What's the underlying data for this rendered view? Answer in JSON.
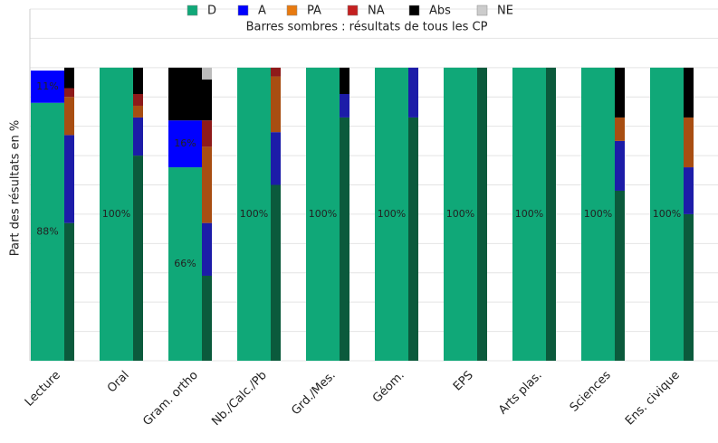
{
  "chart_data": {
    "type": "stacked-bar",
    "subtitle": "Barres sombres : résultats de tous les CP",
    "ylabel": "Part des résultats en %",
    "categories": [
      "Lecture",
      "Oral",
      "Gram. ortho",
      "Nb./Calc./Pb",
      "Grd./Mes.",
      "Géom.",
      "EPS",
      "Arts plas.",
      "Sciences",
      "Ens. civique"
    ],
    "ylim": [
      0,
      120
    ],
    "yticks": [
      0,
      10,
      20,
      30,
      40,
      50,
      60,
      70,
      80,
      90,
      100,
      110,
      120
    ],
    "grid": true,
    "series": [
      {
        "name": "D",
        "color": "#10a878",
        "dark_color": "#0b5a3c",
        "values": [
          88,
          100,
          66,
          100,
          100,
          100,
          100,
          100,
          100,
          100
        ],
        "value_labels": [
          "88%",
          "100%",
          "66%",
          "100%",
          "100%",
          "100%",
          "100%",
          "100%",
          "100%",
          "100%"
        ],
        "all_values": [
          47,
          70,
          29,
          60,
          83,
          83,
          100,
          100,
          58,
          50
        ]
      },
      {
        "name": "A",
        "color": "#0000ff",
        "dark_color": "#1c1ca8",
        "values": [
          11,
          0,
          16,
          0,
          0,
          0,
          0,
          0,
          0,
          0
        ],
        "value_labels": [
          "11%",
          null,
          "16%",
          null,
          null,
          null,
          null,
          null,
          null,
          null
        ],
        "all_values": [
          30,
          13,
          18,
          18,
          8,
          17,
          0,
          0,
          17,
          16
        ]
      },
      {
        "name": "PA",
        "color": "#e87a10",
        "dark_color": "#a84e12",
        "values": [
          0,
          0,
          0,
          0,
          0,
          0,
          0,
          0,
          0,
          0
        ],
        "all_values": [
          13,
          4,
          26,
          19,
          0,
          0,
          0,
          0,
          8,
          17
        ]
      },
      {
        "name": "NA",
        "color": "#c42020",
        "dark_color": "#8e1a1a",
        "values": [
          0,
          0,
          0,
          0,
          0,
          0,
          0,
          0,
          0,
          0
        ],
        "all_values": [
          3,
          4,
          9,
          3,
          0,
          0,
          0,
          0,
          0,
          0
        ]
      },
      {
        "name": "Abs",
        "color": "#000000",
        "dark_color": "#000000",
        "values": [
          0,
          0,
          18,
          0,
          0,
          0,
          0,
          0,
          0,
          0
        ],
        "all_values": [
          7,
          9,
          14,
          0,
          9,
          0,
          0,
          0,
          17,
          17
        ]
      },
      {
        "name": "NE",
        "color": "#cccccc",
        "dark_color": "#bbbbbb",
        "values": [
          0,
          0,
          0,
          0,
          0,
          0,
          0,
          0,
          0,
          0
        ],
        "all_values": [
          0,
          0,
          4,
          0,
          0,
          0,
          0,
          0,
          0,
          0
        ]
      }
    ]
  }
}
